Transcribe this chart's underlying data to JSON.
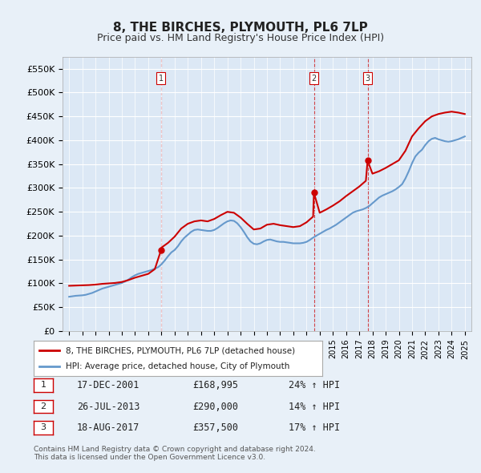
{
  "title": "8, THE BIRCHES, PLYMOUTH, PL6 7LP",
  "subtitle": "Price paid vs. HM Land Registry's House Price Index (HPI)",
  "ylabel": "",
  "xlabel": "",
  "ylim": [
    0,
    575000
  ],
  "yticks": [
    0,
    50000,
    100000,
    150000,
    200000,
    250000,
    300000,
    350000,
    400000,
    450000,
    500000,
    550000
  ],
  "ytick_labels": [
    "£0",
    "£50K",
    "£100K",
    "£150K",
    "£200K",
    "£250K",
    "£300K",
    "£350K",
    "£400K",
    "£450K",
    "£500K",
    "£550K"
  ],
  "xlim_start": 1994.5,
  "xlim_end": 2025.5,
  "sale_dates": [
    2001.96,
    2013.56,
    2017.63
  ],
  "sale_prices": [
    168995,
    290000,
    357500
  ],
  "sale_labels": [
    "1",
    "2",
    "3"
  ],
  "sale_info": [
    {
      "num": "1",
      "date": "17-DEC-2001",
      "price": "£168,995",
      "change": "24% ↑ HPI"
    },
    {
      "num": "2",
      "date": "26-JUL-2013",
      "price": "£290,000",
      "change": "14% ↑ HPI"
    },
    {
      "num": "3",
      "date": "18-AUG-2017",
      "price": "£357,500",
      "change": "17% ↑ HPI"
    }
  ],
  "legend_entries": [
    {
      "label": "8, THE BIRCHES, PLYMOUTH, PL6 7LP (detached house)",
      "color": "#cc0000",
      "lw": 1.5
    },
    {
      "label": "HPI: Average price, detached house, City of Plymouth",
      "color": "#6699cc",
      "lw": 1.5
    }
  ],
  "footnote": "Contains HM Land Registry data © Crown copyright and database right 2024.\nThis data is licensed under the Open Government Licence v3.0.",
  "background_color": "#e8f0f8",
  "plot_bg_color": "#dce8f5",
  "grid_color": "#ffffff",
  "hpi_x": [
    1995.0,
    1995.25,
    1995.5,
    1995.75,
    1996.0,
    1996.25,
    1996.5,
    1996.75,
    1997.0,
    1997.25,
    1997.5,
    1997.75,
    1998.0,
    1998.25,
    1998.5,
    1998.75,
    1999.0,
    1999.25,
    1999.5,
    1999.75,
    2000.0,
    2000.25,
    2000.5,
    2000.75,
    2001.0,
    2001.25,
    2001.5,
    2001.75,
    2002.0,
    2002.25,
    2002.5,
    2002.75,
    2003.0,
    2003.25,
    2003.5,
    2003.75,
    2004.0,
    2004.25,
    2004.5,
    2004.75,
    2005.0,
    2005.25,
    2005.5,
    2005.75,
    2006.0,
    2006.25,
    2006.5,
    2006.75,
    2007.0,
    2007.25,
    2007.5,
    2007.75,
    2008.0,
    2008.25,
    2008.5,
    2008.75,
    2009.0,
    2009.25,
    2009.5,
    2009.75,
    2010.0,
    2010.25,
    2010.5,
    2010.75,
    2011.0,
    2011.25,
    2011.5,
    2011.75,
    2012.0,
    2012.25,
    2012.5,
    2012.75,
    2013.0,
    2013.25,
    2013.5,
    2013.75,
    2014.0,
    2014.25,
    2014.5,
    2014.75,
    2015.0,
    2015.25,
    2015.5,
    2015.75,
    2016.0,
    2016.25,
    2016.5,
    2016.75,
    2017.0,
    2017.25,
    2017.5,
    2017.75,
    2018.0,
    2018.25,
    2018.5,
    2018.75,
    2019.0,
    2019.25,
    2019.5,
    2019.75,
    2020.0,
    2020.25,
    2020.5,
    2020.75,
    2021.0,
    2021.25,
    2021.5,
    2021.75,
    2022.0,
    2022.25,
    2022.5,
    2022.75,
    2023.0,
    2023.25,
    2023.5,
    2023.75,
    2024.0,
    2024.25,
    2024.5,
    2024.75,
    2025.0
  ],
  "hpi_y": [
    72000,
    73000,
    74000,
    74500,
    75000,
    76000,
    78000,
    80000,
    83000,
    86000,
    89000,
    91000,
    93000,
    95000,
    97000,
    99000,
    101000,
    104000,
    108000,
    113000,
    117000,
    120000,
    122000,
    124000,
    126000,
    128000,
    131000,
    134000,
    140000,
    148000,
    157000,
    165000,
    170000,
    178000,
    188000,
    196000,
    202000,
    208000,
    212000,
    213000,
    212000,
    211000,
    210000,
    210000,
    212000,
    216000,
    221000,
    226000,
    230000,
    232000,
    231000,
    226000,
    218000,
    208000,
    197000,
    188000,
    183000,
    182000,
    184000,
    188000,
    191000,
    192000,
    190000,
    188000,
    187000,
    187000,
    186000,
    185000,
    184000,
    184000,
    184000,
    185000,
    187000,
    191000,
    196000,
    200000,
    204000,
    208000,
    212000,
    215000,
    219000,
    223000,
    228000,
    233000,
    238000,
    243000,
    248000,
    251000,
    253000,
    255000,
    258000,
    262000,
    268000,
    274000,
    280000,
    284000,
    287000,
    290000,
    293000,
    297000,
    302000,
    308000,
    320000,
    335000,
    352000,
    366000,
    374000,
    380000,
    390000,
    398000,
    403000,
    405000,
    402000,
    400000,
    398000,
    397000,
    398000,
    400000,
    402000,
    405000,
    408000
  ],
  "property_x": [
    1995.0,
    1995.5,
    1996.0,
    1996.5,
    1997.0,
    1997.5,
    1998.0,
    1998.5,
    1999.0,
    1999.5,
    2000.0,
    2000.5,
    2001.0,
    2001.5,
    2001.96,
    2002.0,
    2002.5,
    2003.0,
    2003.5,
    2004.0,
    2004.5,
    2005.0,
    2005.5,
    2006.0,
    2006.5,
    2007.0,
    2007.5,
    2008.0,
    2008.5,
    2009.0,
    2009.5,
    2010.0,
    2010.5,
    2011.0,
    2011.5,
    2012.0,
    2012.5,
    2013.0,
    2013.5,
    2013.56,
    2014.0,
    2014.5,
    2015.0,
    2015.5,
    2016.0,
    2016.5,
    2017.0,
    2017.5,
    2017.63,
    2018.0,
    2018.5,
    2019.0,
    2019.5,
    2020.0,
    2020.5,
    2021.0,
    2021.5,
    2022.0,
    2022.5,
    2023.0,
    2023.5,
    2024.0,
    2024.5,
    2025.0
  ],
  "property_y": [
    95000,
    95500,
    96000,
    96500,
    97500,
    99000,
    100000,
    101000,
    103000,
    107000,
    112000,
    116000,
    120000,
    130000,
    168995,
    175000,
    185000,
    198000,
    215000,
    225000,
    230000,
    232000,
    230000,
    235000,
    243000,
    250000,
    248000,
    238000,
    225000,
    213000,
    215000,
    223000,
    225000,
    222000,
    220000,
    218000,
    220000,
    228000,
    240000,
    290000,
    248000,
    255000,
    263000,
    272000,
    283000,
    293000,
    303000,
    315000,
    357500,
    330000,
    335000,
    342000,
    350000,
    358000,
    378000,
    408000,
    425000,
    440000,
    450000,
    455000,
    458000,
    460000,
    458000,
    455000
  ]
}
